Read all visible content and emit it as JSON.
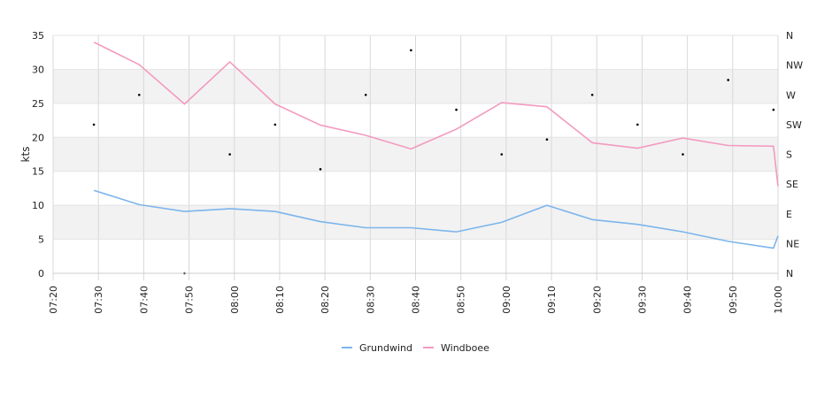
{
  "chart_data": {
    "type": "line",
    "ylabel": "kts",
    "ylim": [
      0,
      35
    ],
    "y_ticks": [
      "0",
      "5",
      "10",
      "15",
      "20",
      "25",
      "30",
      "35"
    ],
    "x_ticks": [
      "07:20",
      "07:30",
      "07:40",
      "07:50",
      "08:00",
      "08:10",
      "08:20",
      "08:30",
      "08:40",
      "08:50",
      "09:00",
      "09:10",
      "09:20",
      "09:30",
      "09:40",
      "09:50",
      "10:00"
    ],
    "x_range": [
      "07:20",
      "10:00"
    ],
    "right_axis_ticks": [
      "N",
      "NE",
      "E",
      "SE",
      "S",
      "SW",
      "W",
      "NW",
      "N"
    ],
    "grid": "horizontal banded, vertical lines at ticks",
    "legend_position": "bottom-center",
    "series": [
      {
        "name": "Grundwind",
        "color": "#7cb5ec",
        "x": [
          "07:29",
          "07:39",
          "07:49",
          "07:59",
          "08:09",
          "08:19",
          "08:29",
          "08:39",
          "08:49",
          "08:59",
          "09:09",
          "09:19",
          "09:29",
          "09:39",
          "09:49",
          "09:59",
          "10:00"
        ],
        "values": [
          12.2,
          10.1,
          9.1,
          9.5,
          9.1,
          7.6,
          6.7,
          6.7,
          6.1,
          7.5,
          10.0,
          7.9,
          7.2,
          6.1,
          4.7,
          3.7,
          5.5
        ]
      },
      {
        "name": "Windboee",
        "color": "#f39ac0",
        "x": [
          "07:29",
          "07:39",
          "07:49",
          "07:59",
          "08:09",
          "08:19",
          "08:29",
          "08:39",
          "08:49",
          "08:59",
          "09:09",
          "09:19",
          "09:29",
          "09:39",
          "09:49",
          "09:59",
          "10:00"
        ],
        "values": [
          34.0,
          30.7,
          24.9,
          31.1,
          24.9,
          21.8,
          20.3,
          18.3,
          21.2,
          25.1,
          24.5,
          19.2,
          18.4,
          19.9,
          18.8,
          18.7,
          12.8
        ]
      },
      {
        "name": "",
        "axis": "right",
        "color": "#000000",
        "x": [
          "07:29",
          "07:39",
          "07:49",
          "07:59",
          "08:09",
          "08:19",
          "08:29",
          "08:39",
          "08:49",
          "08:59",
          "09:09",
          "09:19",
          "09:29",
          "09:39",
          "09:49",
          "09:59"
        ],
        "values": [
          "SW",
          "W",
          "N",
          "S",
          "SW",
          "SSE",
          "W",
          "NNW",
          "WSW",
          "S",
          "SSW",
          "W",
          "SW",
          "S",
          "WNW",
          "WSW"
        ]
      }
    ]
  },
  "legend": {
    "items": [
      {
        "name": "Grundwind",
        "color": "#7cb5ec"
      },
      {
        "name": "Windboee",
        "color": "#f39ac0"
      }
    ]
  }
}
